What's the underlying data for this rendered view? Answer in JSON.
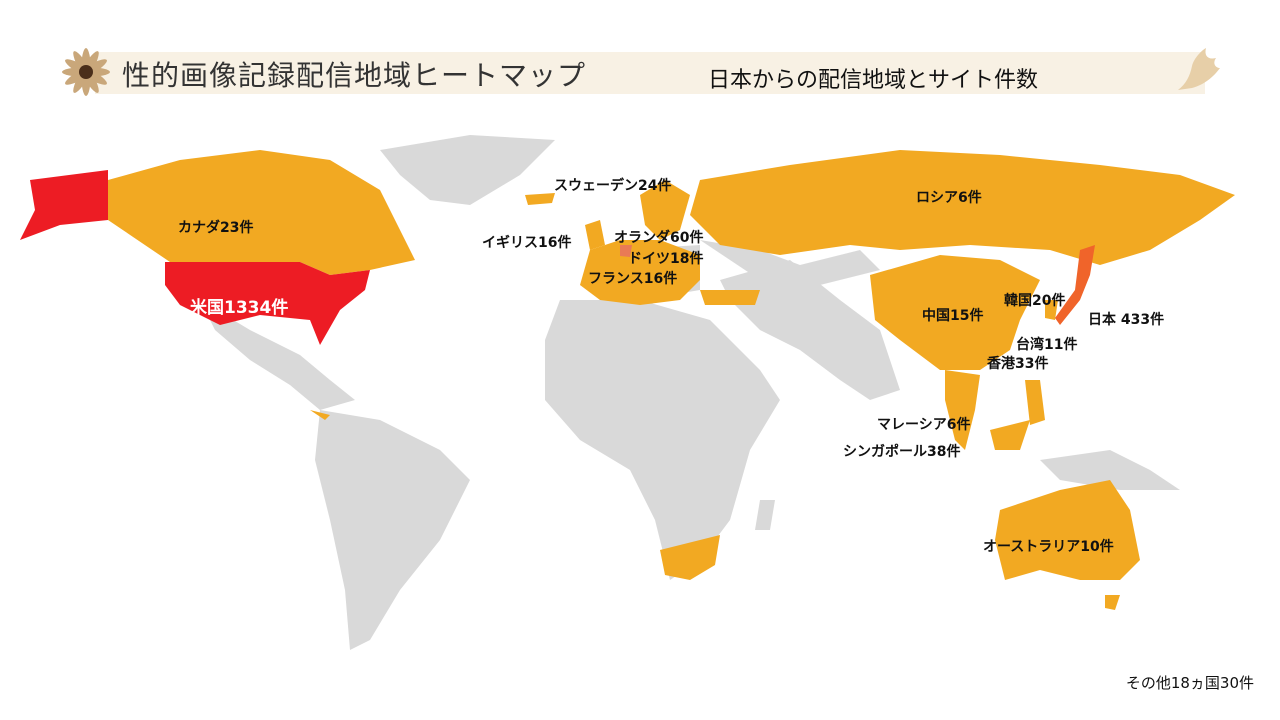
{
  "header": {
    "title": "性的画像記録配信地域ヒートマップ",
    "subtitle": "日本からの配信地域とサイト件数"
  },
  "colors": {
    "top": "#ED1C24",
    "japan": "#F0642A",
    "netherlands": "#E97A55",
    "listed": "#F2A922",
    "other": "#D9D9D9"
  },
  "icons": {
    "title": "flower-icon",
    "corner": "bird-icon"
  },
  "regions": [
    {
      "id": "usa",
      "label": "米国1334件",
      "count": 1334
    },
    {
      "id": "canada",
      "label": "カナダ23件",
      "count": 23
    },
    {
      "id": "sweden",
      "label": "スウェーデン24件",
      "count": 24
    },
    {
      "id": "uk",
      "label": "イギリス16件",
      "count": 16
    },
    {
      "id": "netherlands",
      "label": "オランダ60件",
      "count": 60
    },
    {
      "id": "germany",
      "label": "ドイツ18件",
      "count": 18
    },
    {
      "id": "france",
      "label": "フランス16件",
      "count": 16
    },
    {
      "id": "russia",
      "label": "ロシア6件",
      "count": 6
    },
    {
      "id": "china",
      "label": "中国15件",
      "count": 15
    },
    {
      "id": "korea",
      "label": "韓国20件",
      "count": 20
    },
    {
      "id": "japan",
      "label": "日本 433件",
      "count": 433
    },
    {
      "id": "taiwan",
      "label": "台湾11件",
      "count": 11
    },
    {
      "id": "hongkong",
      "label": "香港33件",
      "count": 33
    },
    {
      "id": "malaysia",
      "label": "マレーシア6件",
      "count": 6
    },
    {
      "id": "singapore",
      "label": "シンガポール38件",
      "count": 38
    },
    {
      "id": "australia",
      "label": "オーストラリア10件",
      "count": 10
    }
  ],
  "footer": {
    "other": "その他18ヵ国30件"
  }
}
